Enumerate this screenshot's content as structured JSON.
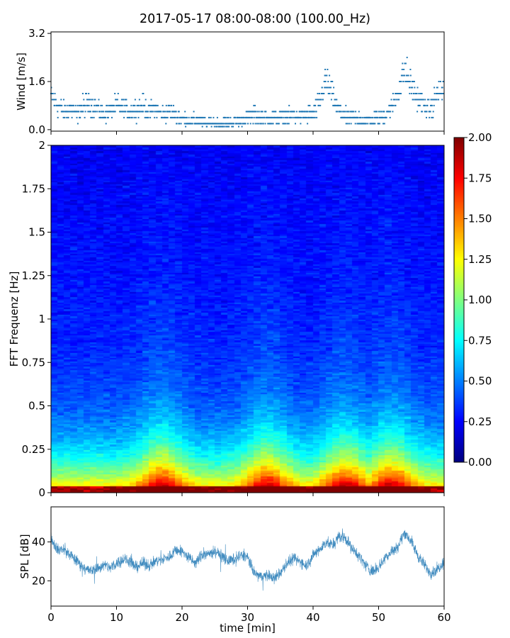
{
  "figure": {
    "title": "2017-05-17 08:00-08:00 (100.00_Hz)"
  },
  "chart_data": [
    {
      "id": "wind",
      "type": "scatter",
      "title": "",
      "xlabel": "",
      "ylabel": "Wind [m/s]",
      "xlim": [
        0,
        60
      ],
      "ylim": [
        -0.05,
        3.25
      ],
      "yticks": [
        0.0,
        1.6,
        3.2
      ],
      "ytick_labels": [
        "0.0",
        "1.6",
        "3.2"
      ],
      "xticks": [
        0,
        10,
        20,
        30,
        40,
        50,
        60
      ],
      "color": "#1f77b4",
      "quantization": 0.2,
      "samples_per_min": 20,
      "envelope": {
        "x": [
          0,
          1,
          2,
          3,
          4,
          5,
          6,
          7,
          8,
          9,
          10,
          11,
          12,
          13,
          14,
          15,
          16,
          17,
          18,
          19,
          20,
          21,
          22,
          23,
          24,
          25,
          26,
          27,
          28,
          29,
          30,
          31,
          32,
          33,
          34,
          35,
          36,
          37,
          38,
          39,
          40,
          41,
          42,
          43,
          44,
          45,
          46,
          47,
          48,
          49,
          50,
          51,
          52,
          53,
          54,
          55,
          56,
          57,
          58,
          59,
          60
        ],
        "y": [
          1.1,
          0.8,
          0.6,
          0.7,
          0.5,
          0.8,
          0.9,
          0.7,
          0.5,
          0.6,
          0.8,
          0.7,
          0.6,
          0.7,
          0.8,
          0.6,
          0.7,
          0.5,
          0.6,
          0.5,
          0.4,
          0.3,
          0.3,
          0.2,
          0.2,
          0.2,
          0.15,
          0.2,
          0.25,
          0.3,
          0.4,
          0.5,
          0.4,
          0.4,
          0.35,
          0.4,
          0.45,
          0.5,
          0.45,
          0.5,
          0.5,
          0.9,
          1.7,
          1.1,
          0.6,
          0.4,
          0.4,
          0.35,
          0.3,
          0.3,
          0.4,
          0.5,
          0.7,
          1.3,
          2.0,
          1.4,
          1.0,
          0.8,
          0.7,
          1.2,
          1.3
        ]
      }
    },
    {
      "id": "spectrogram",
      "type": "heatmap",
      "title": "",
      "xlabel": "",
      "ylabel": "FFT Frequenz [Hz]",
      "xlim": [
        0,
        60
      ],
      "ylim": [
        0,
        2
      ],
      "yticks": [
        0,
        0.25,
        0.5,
        0.75,
        1,
        1.25,
        1.5,
        1.75,
        2
      ],
      "ytick_labels": [
        "0",
        "0.25",
        "0.5",
        "0.75",
        "1",
        "1.25",
        "1.5",
        "1.75",
        "2"
      ],
      "xticks": [
        0,
        10,
        20,
        30,
        40,
        50,
        60
      ],
      "colormap": "jet",
      "clim": [
        0,
        2
      ],
      "time_bins": 60,
      "freq_bins": 200,
      "low_freq_level": 1.4,
      "high_freq_level": 0.35,
      "bright_time_minutes": [
        17,
        33,
        45,
        52
      ]
    },
    {
      "id": "spl",
      "type": "line",
      "title": "",
      "xlabel": "time [min]",
      "ylabel": "SPL [dB]",
      "xlim": [
        0,
        60
      ],
      "ylim": [
        7,
        58
      ],
      "yticks": [
        20,
        40
      ],
      "ytick_labels": [
        "20",
        "40"
      ],
      "xticks": [
        0,
        10,
        20,
        30,
        40,
        50,
        60
      ],
      "xtick_labels": [
        "0",
        "10",
        "20",
        "30",
        "40",
        "50",
        "60"
      ],
      "color": "#1f77b4",
      "envelope": {
        "x": [
          0,
          1,
          2,
          3,
          4,
          5,
          6,
          7,
          8,
          9,
          10,
          11,
          12,
          13,
          14,
          15,
          16,
          17,
          18,
          19,
          20,
          21,
          22,
          23,
          24,
          25,
          26,
          27,
          28,
          29,
          30,
          31,
          32,
          33,
          34,
          35,
          36,
          37,
          38,
          39,
          40,
          41,
          42,
          43,
          44,
          45,
          46,
          47,
          48,
          49,
          50,
          51,
          52,
          53,
          54,
          55,
          56,
          57,
          58,
          59,
          60
        ],
        "y": [
          42,
          36,
          36,
          33,
          30,
          27,
          25,
          26,
          28,
          27,
          29,
          31,
          30,
          27,
          29,
          28,
          30,
          31,
          32,
          36,
          35,
          32,
          29,
          33,
          34,
          35,
          33,
          30,
          31,
          33,
          32,
          24,
          22,
          23,
          21,
          24,
          29,
          31,
          30,
          28,
          33,
          36,
          40,
          38,
          43,
          42,
          36,
          33,
          28,
          25,
          27,
          32,
          35,
          38,
          45,
          40,
          33,
          28,
          24,
          26,
          30
        ]
      }
    }
  ],
  "colorbar": {
    "range": [
      0,
      2
    ],
    "ticks": [
      0,
      0.25,
      0.5,
      0.75,
      1,
      1.25,
      1.5,
      1.75,
      2
    ],
    "tick_labels": [
      "0.00",
      "0.25",
      "0.50",
      "0.75",
      "1.00",
      "1.25",
      "1.50",
      "1.75",
      "2.00"
    ]
  }
}
